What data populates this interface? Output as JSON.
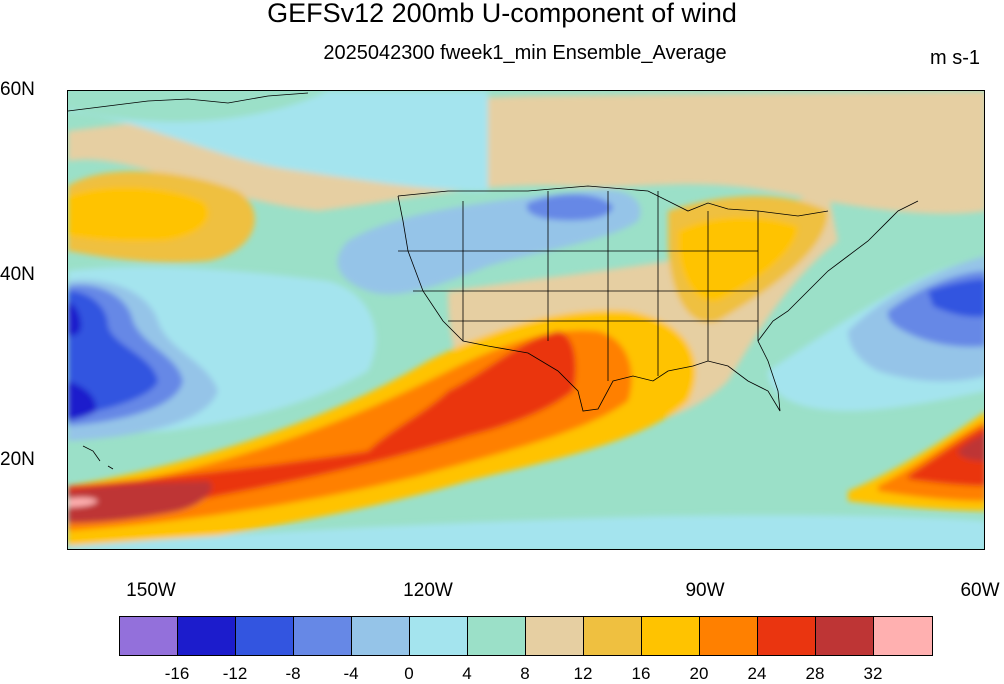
{
  "title": "GEFSv12 200mb U-component of wind",
  "subtitle": "2025042300 fweek1_min Ensemble_Average",
  "units": "m s-1",
  "lat_labels": [
    "60N",
    "40N",
    "20N"
  ],
  "lon_labels": [
    "150W",
    "120W",
    "90W",
    "60W"
  ],
  "colorbar": {
    "colors": [
      "#9370db",
      "#1c1ccc",
      "#3355e0",
      "#6688e6",
      "#95c4e8",
      "#a4e4ee",
      "#9be0c8",
      "#e6cfa2",
      "#efc040",
      "#ffc300",
      "#ff8000",
      "#ea3510",
      "#be3535",
      "#ffb0b0"
    ],
    "labels": [
      "-16",
      "-12",
      "-8",
      "-4",
      "0",
      "4",
      "8",
      "12",
      "16",
      "20",
      "24",
      "28",
      "32"
    ]
  }
}
